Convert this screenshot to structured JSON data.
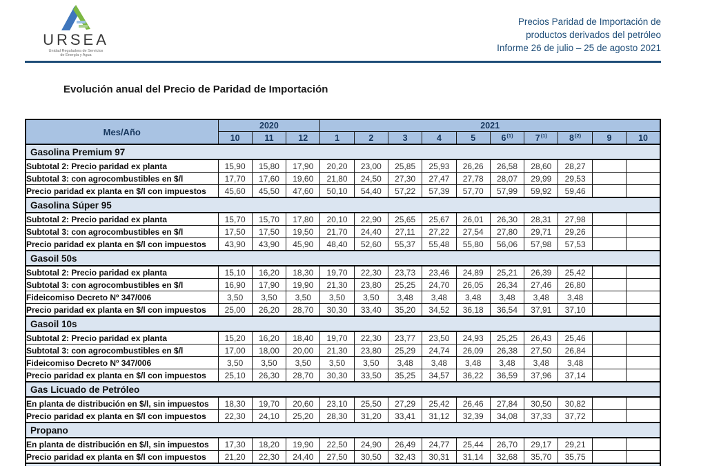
{
  "colors": {
    "header-blue": "#a9c3e3",
    "section-blue": "#dbe5f1",
    "navy": "#17375d",
    "report-blue": "#1f4e79",
    "rule-blue": "#1f4e79",
    "logo-blue": "#3f76bc",
    "logo-green": "#7cb842"
  },
  "header": {
    "logo_text": "URSEA",
    "logo_tagline_line1": "Unidad Reguladora de Servicios",
    "logo_tagline_line2": "de Energía y Agua",
    "report_line1": "Precios Paridad de Importación de",
    "report_line2": "productos derivados del petróleo",
    "report_line3": "Informe 26 de julio – 25 de agosto 2021"
  },
  "page_title": "Evolución anual del Precio de Paridad de Importación",
  "table": {
    "corner_label": "Mes/Año",
    "year_groups": [
      {
        "label": "2020",
        "colspan": 3
      },
      {
        "label": "2021",
        "colspan": 10
      }
    ],
    "month_columns": [
      {
        "label": "10"
      },
      {
        "label": "11"
      },
      {
        "label": "12"
      },
      {
        "label": "1"
      },
      {
        "label": "2"
      },
      {
        "label": "3"
      },
      {
        "label": "4"
      },
      {
        "label": "5"
      },
      {
        "label": "6",
        "superscript": "(1)"
      },
      {
        "label": "7",
        "superscript": "(1)"
      },
      {
        "label": "8",
        "superscript": "(2)"
      },
      {
        "label": "9"
      },
      {
        "label": "10"
      }
    ],
    "sections": [
      {
        "title": "Gasolina Premium 97",
        "rows": [
          {
            "label": "Subtotal 2: Precio paridad ex planta",
            "values": [
              "15,90",
              "15,80",
              "17,90",
              "20,20",
              "23,00",
              "25,85",
              "25,93",
              "26,26",
              "26,58",
              "28,60",
              "28,27",
              "",
              ""
            ]
          },
          {
            "label": "Subtotal 3: con agrocombustibles en $/l",
            "values": [
              "17,70",
              "17,60",
              "19,60",
              "21,80",
              "24,50",
              "27,30",
              "27,47",
              "27,78",
              "28,07",
              "29,99",
              "29,53",
              "",
              ""
            ]
          },
          {
            "label": "Precio paridad ex planta en $/l con impuestos",
            "values": [
              "45,60",
              "45,50",
              "47,60",
              "50,10",
              "54,40",
              "57,22",
              "57,39",
              "57,70",
              "57,99",
              "59,92",
              "59,46",
              "",
              ""
            ]
          }
        ]
      },
      {
        "title": "Gasolina Súper 95",
        "rows": [
          {
            "label": "Subtotal 2: Precio paridad ex planta",
            "values": [
              "15,70",
              "15,70",
              "17,80",
              "20,10",
              "22,90",
              "25,65",
              "25,67",
              "26,01",
              "26,30",
              "28,31",
              "27,98",
              "",
              ""
            ]
          },
          {
            "label": "Subtotal 3: con agrocombustibles en $/l",
            "values": [
              "17,50",
              "17,50",
              "19,50",
              "21,70",
              "24,40",
              "27,11",
              "27,22",
              "27,54",
              "27,80",
              "29,71",
              "29,26",
              "",
              ""
            ]
          },
          {
            "label": "Precio paridad ex planta en $/l con impuestos",
            "values": [
              "43,90",
              "43,90",
              "45,90",
              "48,40",
              "52,60",
              "55,37",
              "55,48",
              "55,80",
              "56,06",
              "57,98",
              "57,53",
              "",
              ""
            ]
          }
        ]
      },
      {
        "title": "Gasoil 50s",
        "rows": [
          {
            "label": "Subtotal 2: Precio paridad ex planta",
            "values": [
              "15,10",
              "16,20",
              "18,30",
              "19,70",
              "22,30",
              "23,73",
              "23,46",
              "24,89",
              "25,21",
              "26,39",
              "25,42",
              "",
              ""
            ]
          },
          {
            "label": "Subtotal 3: con agrocombustibles en $/l",
            "values": [
              "16,90",
              "17,90",
              "19,90",
              "21,30",
              "23,80",
              "25,25",
              "24,70",
              "26,05",
              "26,34",
              "27,46",
              "26,80",
              "",
              ""
            ]
          },
          {
            "label": "Fideicomiso Decreto Nº 347/006",
            "values": [
              "3,50",
              "3,50",
              "3,50",
              "3,50",
              "3,50",
              "3,48",
              "3,48",
              "3,48",
              "3,48",
              "3,48",
              "3,48",
              "",
              ""
            ]
          },
          {
            "label": "Precio paridad ex planta en $/l con impuestos",
            "values": [
              "25,00",
              "26,20",
              "28,70",
              "30,30",
              "33,40",
              "35,20",
              "34,52",
              "36,18",
              "36,54",
              "37,91",
              "37,10",
              "",
              ""
            ]
          }
        ]
      },
      {
        "title": "Gasoil 10s",
        "rows": [
          {
            "label": "Subtotal 2: Precio paridad ex planta",
            "values": [
              "15,20",
              "16,20",
              "18,40",
              "19,70",
              "22,30",
              "23,77",
              "23,50",
              "24,93",
              "25,25",
              "26,43",
              "25,46",
              "",
              ""
            ]
          },
          {
            "label": "Subtotal 3: con agrocombustibles en $/l",
            "values": [
              "17,00",
              "18,00",
              "20,00",
              "21,30",
              "23,80",
              "25,29",
              "24,74",
              "26,09",
              "26,38",
              "27,50",
              "26,84",
              "",
              ""
            ]
          },
          {
            "label": "Fideicomiso Decreto Nº 347/006",
            "values": [
              "3,50",
              "3,50",
              "3,50",
              "3,50",
              "3,50",
              "3,48",
              "3,48",
              "3,48",
              "3,48",
              "3,48",
              "3,48",
              "",
              ""
            ]
          },
          {
            "label": "Precio paridad ex planta en $/l con impuestos",
            "values": [
              "25,10",
              "26,30",
              "28,70",
              "30,30",
              "33,50",
              "35,25",
              "34,57",
              "36,22",
              "36,59",
              "37,96",
              "37,14",
              "",
              ""
            ]
          }
        ]
      },
      {
        "title": "Gas Licuado de Petróleo",
        "rows": [
          {
            "label": "En planta de distribución en $/l, sin impuestos",
            "values": [
              "18,30",
              "19,70",
              "20,60",
              "23,10",
              "25,50",
              "27,29",
              "25,42",
              "26,46",
              "27,84",
              "30,50",
              "30,82",
              "",
              ""
            ]
          },
          {
            "label": "Precio paridad ex planta en $/l con impuestos",
            "values": [
              "22,30",
              "24,10",
              "25,20",
              "28,30",
              "31,20",
              "33,41",
              "31,12",
              "32,39",
              "34,08",
              "37,33",
              "37,72",
              "",
              ""
            ]
          }
        ]
      },
      {
        "title": "Propano",
        "rows": [
          {
            "label": "En planta de distribución en $/l, sin impuestos",
            "values": [
              "17,30",
              "18,20",
              "19,90",
              "22,50",
              "24,90",
              "26,49",
              "24,77",
              "25,44",
              "26,70",
              "29,17",
              "29,21",
              "",
              ""
            ]
          },
          {
            "label": "Precio paridad ex planta en $/l con impuestos",
            "values": [
              "21,20",
              "22,30",
              "24,40",
              "27,50",
              "30,50",
              "32,43",
              "30,31",
              "31,14",
              "32,68",
              "35,70",
              "35,75",
              "",
              ""
            ]
          }
        ]
      }
    ]
  }
}
